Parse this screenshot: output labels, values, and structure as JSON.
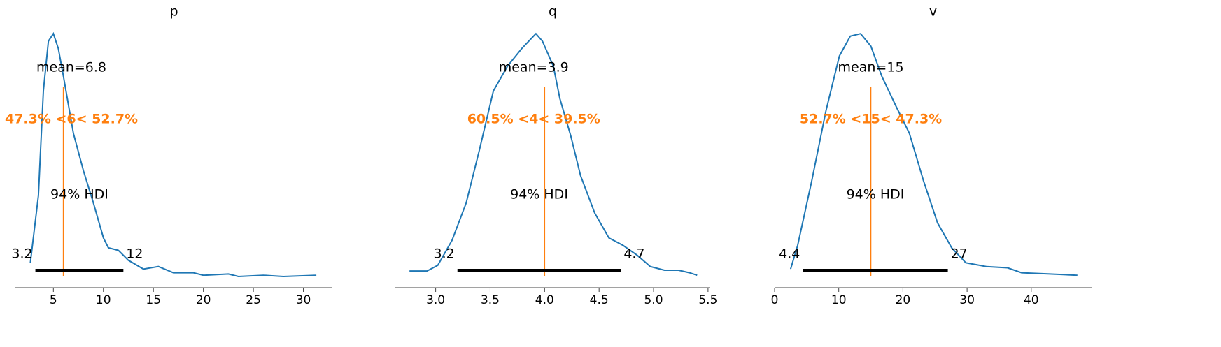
{
  "chart_data": [
    {
      "type": "density",
      "title": "p",
      "color": "#1f77b4",
      "x": [
        2.7,
        3.5,
        4,
        4.5,
        5,
        5.5,
        6,
        7,
        8,
        9,
        10,
        10.5,
        11.5,
        12.5,
        14,
        15.5,
        17,
        19,
        20,
        22.5,
        23.5,
        26,
        28,
        31.3
      ],
      "values": [
        0.07,
        0.34,
        0.76,
        0.96,
        0.99,
        0.93,
        0.82,
        0.59,
        0.44,
        0.31,
        0.17,
        0.13,
        0.12,
        0.08,
        0.045,
        0.055,
        0.03,
        0.03,
        0.02,
        0.025,
        0.015,
        0.02,
        0.015,
        0.02
      ],
      "xlim": [
        1.2,
        32.9
      ],
      "xticks": [
        5,
        10,
        15,
        20,
        25,
        30
      ],
      "ylim": [
        -0.03,
        1.1
      ],
      "mean": 6.8,
      "mean_label": "mean=6.8",
      "ref_value": 6,
      "ref_color": "#ff7f0e",
      "ref_label": "47.3% <6< 52.7%",
      "hdi_label": "94% HDI",
      "hdi": [
        3.2,
        12
      ],
      "hdi_color": "#000000"
    },
    {
      "type": "density",
      "title": "q",
      "color": "#1f77b4",
      "x": [
        2.76,
        2.92,
        3.02,
        3.15,
        3.28,
        3.4,
        3.53,
        3.66,
        3.79,
        3.92,
        3.98,
        4.08,
        4.14,
        4.24,
        4.33,
        4.46,
        4.59,
        4.72,
        4.85,
        4.97,
        5.1,
        5.23,
        5.33,
        5.4
      ],
      "values": [
        0.037,
        0.037,
        0.06,
        0.16,
        0.31,
        0.52,
        0.76,
        0.86,
        0.93,
        0.99,
        0.96,
        0.86,
        0.73,
        0.58,
        0.42,
        0.27,
        0.17,
        0.14,
        0.1,
        0.055,
        0.04,
        0.04,
        0.03,
        0.02
      ],
      "xlim": [
        2.63,
        5.52
      ],
      "xticks": [
        {
          "value": 3,
          "label": "3.0"
        },
        3.5,
        {
          "value": 4,
          "label": "4.0"
        },
        4.5,
        {
          "value": 5,
          "label": "5.0"
        },
        5.5
      ],
      "ylim": [
        -0.03,
        1.1
      ],
      "mean": 3.9,
      "mean_label": "mean=3.9",
      "ref_value": 4,
      "ref_color": "#ff7f0e",
      "ref_label": "60.5% <4< 39.5%",
      "hdi_label": "94% HDI",
      "hdi": [
        3.2,
        4.7
      ],
      "hdi_color": "#000000"
    },
    {
      "type": "density",
      "title": "v",
      "color": "#1f77b4",
      "x": [
        2.5,
        3.6,
        5.8,
        8,
        10.1,
        11.8,
        13.4,
        15,
        16.7,
        18.9,
        21,
        23.2,
        25.4,
        27.6,
        29.8,
        33,
        36.3,
        38.5,
        42.9,
        47.2
      ],
      "values": [
        0.045,
        0.14,
        0.4,
        0.68,
        0.9,
        0.98,
        0.99,
        0.94,
        0.82,
        0.7,
        0.59,
        0.4,
        0.23,
        0.13,
        0.07,
        0.055,
        0.05,
        0.03,
        0.025,
        0.02
      ],
      "xlim": [
        0,
        49.4
      ],
      "xticks": [
        0,
        10,
        20,
        30,
        40
      ],
      "ylim": [
        -0.03,
        1.1
      ],
      "mean": 15,
      "mean_label": "mean=15",
      "ref_value": 15,
      "ref_color": "#ff7f0e",
      "ref_label": "52.7% <15< 47.3%",
      "hdi_label": "94% HDI",
      "hdi": [
        4.4,
        27
      ],
      "hdi_color": "#000000"
    }
  ]
}
